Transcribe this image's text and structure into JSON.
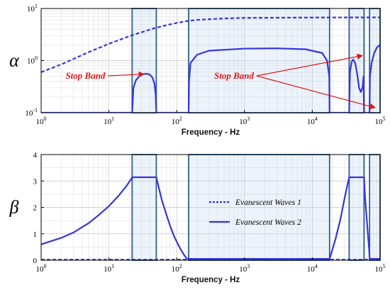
{
  "chart_data": [
    {
      "type": "line",
      "id": "alpha",
      "ylabel": "α",
      "xlabel": "Frequency - Hz",
      "xscale": "log",
      "yscale": "log",
      "xlim": [
        1,
        100000
      ],
      "ylim": [
        0.1,
        10
      ],
      "x_ticks": [
        {
          "base": "10",
          "exp": "0"
        },
        {
          "base": "10",
          "exp": "1"
        },
        {
          "base": "10",
          "exp": "2"
        },
        {
          "base": "10",
          "exp": "3"
        },
        {
          "base": "10",
          "exp": "4"
        },
        {
          "base": "10",
          "exp": "5"
        }
      ],
      "y_ticks": [
        {
          "base": "10",
          "exp": "-1"
        },
        {
          "base": "10",
          "exp": "0"
        },
        {
          "base": "10",
          "exp": "1"
        }
      ],
      "grid": true,
      "stop_bands_hz": [
        [
          22,
          50
        ],
        [
          150,
          18000
        ],
        [
          35000,
          58000
        ],
        [
          70000,
          100000
        ]
      ],
      "annotations": [
        {
          "text": "Stop Band",
          "text_at": [
            4.5,
            0.45
          ],
          "arrows_to": [
            [
              33,
              0.55
            ]
          ]
        },
        {
          "text": "Stop Band",
          "text_at": [
            700,
            0.45
          ],
          "arrows_to": [
            [
              55000,
              1.25
            ],
            [
              85000,
              0.125
            ]
          ]
        }
      ],
      "series": [
        {
          "style": "dashed",
          "values_xy": [
            [
              1,
              0.6
            ],
            [
              2,
              0.85
            ],
            [
              5,
              1.45
            ],
            [
              10,
              2.1
            ],
            [
              20,
              2.95
            ],
            [
              50,
              4.3
            ],
            [
              100,
              5.3
            ],
            [
              150,
              5.8
            ],
            [
              200,
              6.05
            ],
            [
              500,
              6.45
            ],
            [
              1000,
              6.6
            ],
            [
              10000,
              6.7
            ],
            [
              100000,
              6.75
            ]
          ]
        },
        {
          "style": "solid",
          "values_xy": [
            [
              1,
              0.1
            ],
            [
              21.5,
              0.1
            ],
            [
              22,
              0.1
            ],
            [
              23,
              0.3
            ],
            [
              25,
              0.42
            ],
            [
              28,
              0.5
            ],
            [
              32,
              0.55
            ],
            [
              36,
              0.56
            ],
            [
              40,
              0.54
            ],
            [
              44,
              0.47
            ],
            [
              47,
              0.36
            ],
            [
              49,
              0.22
            ],
            [
              50,
              0.1
            ],
            [
              150,
              0.1
            ],
            [
              152,
              0.4
            ],
            [
              160,
              0.9
            ],
            [
              200,
              1.3
            ],
            [
              300,
              1.55
            ],
            [
              1000,
              1.7
            ],
            [
              3000,
              1.72
            ],
            [
              8000,
              1.65
            ],
            [
              14000,
              1.4
            ],
            [
              16500,
              1.0
            ],
            [
              17800,
              0.5
            ],
            [
              18000,
              0.1
            ],
            [
              35000,
              0.1
            ],
            [
              36000,
              0.6
            ],
            [
              38000,
              0.95
            ],
            [
              40000,
              1.05
            ],
            [
              43000,
              0.9
            ],
            [
              46000,
              0.55
            ],
            [
              49000,
              0.3
            ],
            [
              52000,
              0.25
            ],
            [
              55000,
              0.3
            ],
            [
              57000,
              0.5
            ],
            [
              58000,
              0.1
            ],
            [
              70000,
              0.1
            ],
            [
              71000,
              0.5
            ],
            [
              75000,
              0.9
            ],
            [
              82000,
              1.4
            ],
            [
              90000,
              1.8
            ],
            [
              100000,
              2.0
            ]
          ]
        }
      ]
    },
    {
      "type": "line",
      "id": "beta",
      "ylabel": "β",
      "xlabel": "Frequency - Hz",
      "xscale": "log",
      "yscale": "linear",
      "xlim": [
        1,
        100000
      ],
      "ylim": [
        0,
        4
      ],
      "x_ticks": [
        {
          "base": "10",
          "exp": "0"
        },
        {
          "base": "10",
          "exp": "1"
        },
        {
          "base": "10",
          "exp": "2"
        },
        {
          "base": "10",
          "exp": "3"
        },
        {
          "base": "10",
          "exp": "4"
        },
        {
          "base": "10",
          "exp": "5"
        }
      ],
      "y_ticks": [
        "0",
        "1",
        "2",
        "3",
        "4"
      ],
      "grid": true,
      "stop_bands_hz": [
        [
          22,
          50
        ],
        [
          150,
          18000
        ],
        [
          35000,
          58000
        ],
        [
          70000,
          100000
        ]
      ],
      "legend": {
        "placement": "center-right",
        "entries": [
          {
            "label": "Evanescent Waves 1",
            "style": "dashed"
          },
          {
            "label": "Evanescent Waves 2",
            "style": "solid"
          }
        ]
      },
      "series": [
        {
          "name": "Evanescent Waves 1",
          "style": "dashed",
          "values_xy": [
            [
              1,
              0.02
            ],
            [
              100000,
              0.02
            ]
          ]
        },
        {
          "name": "Evanescent Waves 2",
          "style": "solid",
          "values_xy": [
            [
              1,
              0.6
            ],
            [
              2,
              0.85
            ],
            [
              3,
              1.05
            ],
            [
              5,
              1.4
            ],
            [
              7,
              1.7
            ],
            [
              10,
              2.05
            ],
            [
              14,
              2.45
            ],
            [
              18,
              2.8
            ],
            [
              21,
              3.05
            ],
            [
              22,
              3.14
            ],
            [
              50,
              3.14
            ],
            [
              55,
              2.7
            ],
            [
              60,
              2.3
            ],
            [
              70,
              1.75
            ],
            [
              80,
              1.3
            ],
            [
              90,
              0.95
            ],
            [
              100,
              0.7
            ],
            [
              115,
              0.4
            ],
            [
              130,
              0.18
            ],
            [
              140,
              0.07
            ],
            [
              150,
              0.05
            ],
            [
              18000,
              0.05
            ],
            [
              19000,
              0.25
            ],
            [
              22000,
              0.8
            ],
            [
              26000,
              1.55
            ],
            [
              30000,
              2.35
            ],
            [
              33000,
              2.85
            ],
            [
              35000,
              3.14
            ],
            [
              58000,
              3.14
            ],
            [
              60000,
              2.4
            ],
            [
              63000,
              1.7
            ],
            [
              66000,
              1.0
            ],
            [
              69000,
              0.4
            ],
            [
              70000,
              0.05
            ],
            [
              100000,
              0.05
            ]
          ]
        }
      ]
    }
  ]
}
